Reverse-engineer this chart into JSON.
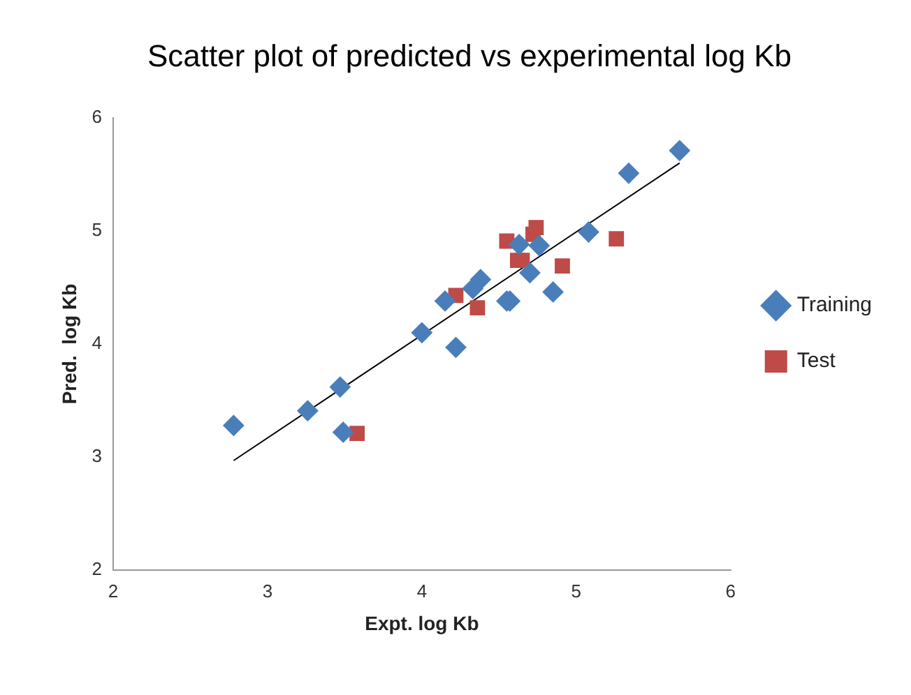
{
  "chart_data": {
    "type": "scatter",
    "title": "Scatter plot of predicted vs experimental log Kb",
    "xlabel": "Expt. log Kb",
    "ylabel": "Pred.  log Kb",
    "xlim": [
      2,
      6
    ],
    "xticks": [
      2,
      3,
      4,
      5,
      6
    ],
    "ylim": [
      2,
      6
    ],
    "yticks": [
      2,
      3,
      4,
      5,
      6
    ],
    "grid": false,
    "legend": "right",
    "series": [
      {
        "name": "Training",
        "color": "#4a7ebb",
        "marker": "diamond",
        "x": [
          2.78,
          3.26,
          3.47,
          3.49,
          4.0,
          4.22,
          4.15,
          4.33,
          4.38,
          4.55,
          4.57,
          4.7,
          4.76,
          4.63,
          4.85,
          5.08,
          5.34,
          5.67
        ],
        "values": [
          3.28,
          3.41,
          3.62,
          3.22,
          4.1,
          3.97,
          4.38,
          4.49,
          4.57,
          4.38,
          4.38,
          4.63,
          4.87,
          4.88,
          4.46,
          4.99,
          5.51,
          5.71
        ]
      },
      {
        "name": "Test",
        "color": "#be4b48",
        "marker": "square",
        "x": [
          3.58,
          4.22,
          4.36,
          4.55,
          4.62,
          4.65,
          4.72,
          4.74,
          4.91,
          5.26
        ],
        "values": [
          3.21,
          4.43,
          4.32,
          4.91,
          4.74,
          4.74,
          4.97,
          5.03,
          4.69,
          4.93
        ]
      },
      {
        "type": "line",
        "color": "#000000",
        "marker": "none",
        "x": [
          2.78,
          5.67
        ],
        "values": [
          2.97,
          5.6
        ]
      }
    ]
  }
}
